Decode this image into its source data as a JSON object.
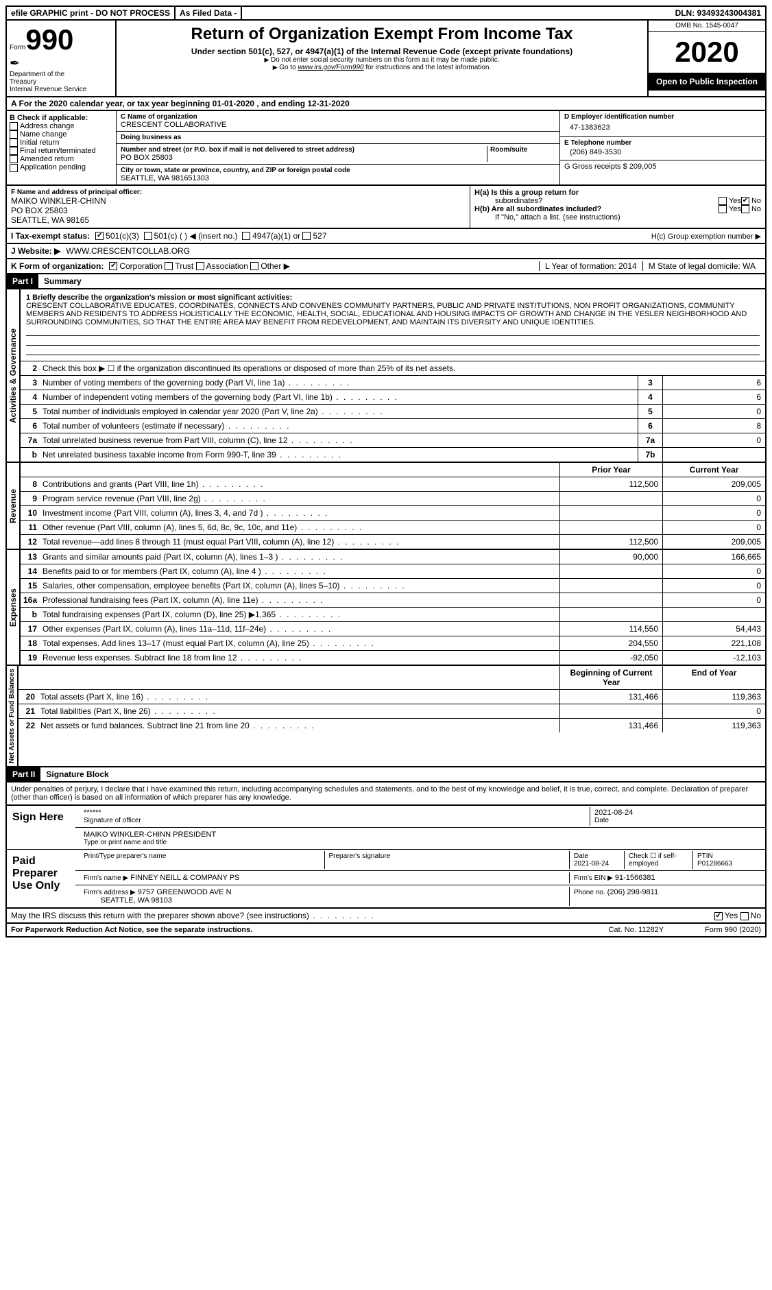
{
  "topbar": {
    "efile": "efile GRAPHIC print - DO NOT PROCESS",
    "asfiled": "As Filed Data -",
    "dln": "DLN: 93493243004381"
  },
  "header": {
    "form_prefix": "Form",
    "form_no": "990",
    "dept1": "Department of the",
    "dept2": "Treasury",
    "dept3": "Internal Revenue Service",
    "title": "Return of Organization Exempt From Income Tax",
    "under": "Under section 501(c), 527, or 4947(a)(1) of the Internal Revenue Code (except private foundations)",
    "ssn": "Do not enter social security numbers on this form as it may be made public.",
    "goto": "Go to ",
    "goto_link": "www.irs.gov/Form990",
    "goto_rest": " for instructions and the latest information.",
    "omb": "OMB No. 1545-0047",
    "year": "2020",
    "open": "Open to Public Inspection"
  },
  "rowA": "A   For the 2020 calendar year, or tax year beginning 01-01-2020   , and ending 12-31-2020",
  "colB": {
    "hdr": "B Check if applicable:",
    "items": [
      "Address change",
      "Name change",
      "Initial return",
      "Final return/terminated",
      "Amended return",
      "Application pending"
    ]
  },
  "colC": {
    "name_lbl": "C Name of organization",
    "name": "CRESCENT COLLABORATIVE",
    "dba_lbl": "Doing business as",
    "addr_lbl": "Number and street (or P.O. box if mail is not delivered to street address)",
    "room_lbl": "Room/suite",
    "addr": "PO BOX 25803",
    "city_lbl": "City or town, state or province, country, and ZIP or foreign postal code",
    "city": "SEATTLE, WA  981651303"
  },
  "colD": {
    "ein_lbl": "D Employer identification number",
    "ein": "47-1383623",
    "tel_lbl": "E Telephone number",
    "tel": "(206) 849-3530",
    "gross_lbl": "G Gross receipts $ 209,005"
  },
  "rowF": {
    "lbl": "F  Name and address of principal officer:",
    "l1": "MAIKO WINKLER-CHINN",
    "l2": "PO BOX 25803",
    "l3": "SEATTLE, WA  98165"
  },
  "rowH": {
    "ha": "H(a)  Is this a group return for",
    "ha2": "subordinates?",
    "hb": "H(b)  Are all subordinates included?",
    "hb2": "If \"No,\" attach a list. (see instructions)",
    "hc": "H(c)  Group exemption number ▶",
    "yes": "Yes",
    "no": "No"
  },
  "rowI": {
    "lbl": "I   Tax-exempt status:",
    "o1": "501(c)(3)",
    "o2": "501(c) (  ) ◀ (insert no.)",
    "o3": "4947(a)(1) or",
    "o4": "527"
  },
  "rowJ": {
    "lbl": "J   Website: ▶",
    "val": "WWW.CRESCENTCOLLAB.ORG"
  },
  "rowK": {
    "lbl": "K Form of organization:",
    "o1": "Corporation",
    "o2": "Trust",
    "o3": "Association",
    "o4": "Other ▶"
  },
  "rowL": {
    "lbl": "L Year of formation: 2014"
  },
  "rowM": {
    "lbl": "M State of legal domicile:",
    "val": "WA"
  },
  "part1": {
    "part": "Part I",
    "title": "Summary"
  },
  "side": {
    "ag": "Activities & Governance",
    "rev": "Revenue",
    "exp": "Expenses",
    "nafb": "Net Assets or Fund Balances"
  },
  "mission": {
    "lbl": "1  Briefly describe the organization's mission or most significant activities:",
    "txt": "CRESCENT COLLABORATIVE EDUCATES, COORDINATES, CONNECTS AND CONVENES COMMUNITY PARTNERS, PUBLIC AND PRIVATE INSTITUTIONS, NON PROFIT ORGANIZATIONS, COMMUNITY MEMBERS AND RESIDENTS TO ADDRESS HOLISTICALLY THE ECONOMIC, HEALTH, SOCIAL, EDUCATIONAL AND HOUSING IMPACTS OF GROWTH AND CHANGE IN THE YESLER NEIGHBORHOOD AND SURROUNDING COMMUNITIES, SO THAT THE ENTIRE AREA MAY BENEFIT FROM REDEVELOPMENT, AND MAINTAIN ITS DIVERSITY AND UNIQUE IDENTITIES."
  },
  "lines_ag": [
    {
      "n": "2",
      "t": "Check this box ▶ ☐ if the organization discontinued its operations or disposed of more than 25% of its net assets."
    },
    {
      "n": "3",
      "t": "Number of voting members of the governing body (Part VI, line 1a)",
      "box": "3",
      "v": "6"
    },
    {
      "n": "4",
      "t": "Number of independent voting members of the governing body (Part VI, line 1b)",
      "box": "4",
      "v": "6"
    },
    {
      "n": "5",
      "t": "Total number of individuals employed in calendar year 2020 (Part V, line 2a)",
      "box": "5",
      "v": "0"
    },
    {
      "n": "6",
      "t": "Total number of volunteers (estimate if necessary)",
      "box": "6",
      "v": "8"
    },
    {
      "n": "7a",
      "t": "Total unrelated business revenue from Part VIII, column (C), line 12",
      "box": "7a",
      "v": "0"
    },
    {
      "n": "b",
      "t": "Net unrelated business taxable income from Form 990-T, line 39",
      "box": "7b",
      "v": ""
    }
  ],
  "colhdrs": {
    "py": "Prior Year",
    "cy": "Current Year"
  },
  "lines_rev": [
    {
      "n": "8",
      "t": "Contributions and grants (Part VIII, line 1h)",
      "py": "112,500",
      "cy": "209,005"
    },
    {
      "n": "9",
      "t": "Program service revenue (Part VIII, line 2g)",
      "py": "",
      "cy": "0"
    },
    {
      "n": "10",
      "t": "Investment income (Part VIII, column (A), lines 3, 4, and 7d )",
      "py": "",
      "cy": "0"
    },
    {
      "n": "11",
      "t": "Other revenue (Part VIII, column (A), lines 5, 6d, 8c, 9c, 10c, and 11e)",
      "py": "",
      "cy": "0"
    },
    {
      "n": "12",
      "t": "Total revenue—add lines 8 through 11 (must equal Part VIII, column (A), line 12)",
      "py": "112,500",
      "cy": "209,005"
    }
  ],
  "lines_exp": [
    {
      "n": "13",
      "t": "Grants and similar amounts paid (Part IX, column (A), lines 1–3 )",
      "py": "90,000",
      "cy": "166,665"
    },
    {
      "n": "14",
      "t": "Benefits paid to or for members (Part IX, column (A), line 4 )",
      "py": "",
      "cy": "0"
    },
    {
      "n": "15",
      "t": "Salaries, other compensation, employee benefits (Part IX, column (A), lines 5–10)",
      "py": "",
      "cy": "0"
    },
    {
      "n": "16a",
      "t": "Professional fundraising fees (Part IX, column (A), line 11e)",
      "py": "",
      "cy": "0"
    },
    {
      "n": "b",
      "t": "Total fundraising expenses (Part IX, column (D), line 25) ▶1,365",
      "py": "",
      "cy": ""
    },
    {
      "n": "17",
      "t": "Other expenses (Part IX, column (A), lines 11a–11d, 11f–24e)",
      "py": "114,550",
      "cy": "54,443"
    },
    {
      "n": "18",
      "t": "Total expenses. Add lines 13–17 (must equal Part IX, column (A), line 25)",
      "py": "204,550",
      "cy": "221,108"
    },
    {
      "n": "19",
      "t": "Revenue less expenses. Subtract line 18 from line 12",
      "py": "-92,050",
      "cy": "-12,103"
    }
  ],
  "colhdrs2": {
    "py": "Beginning of Current Year",
    "cy": "End of Year"
  },
  "lines_na": [
    {
      "n": "20",
      "t": "Total assets (Part X, line 16)",
      "py": "131,466",
      "cy": "119,363"
    },
    {
      "n": "21",
      "t": "Total liabilities (Part X, line 26)",
      "py": "",
      "cy": "0"
    },
    {
      "n": "22",
      "t": "Net assets or fund balances. Subtract line 21 from line 20",
      "py": "131,466",
      "cy": "119,363"
    }
  ],
  "part2": {
    "part": "Part II",
    "title": "Signature Block"
  },
  "penalty": "Under penalties of perjury, I declare that I have examined this return, including accompanying schedules and statements, and to the best of my knowledge and belief, it is true, correct, and complete. Declaration of preparer (other than officer) is based on all information of which preparer has any knowledge.",
  "sign": {
    "here": "Sign Here",
    "stars": "******",
    "sig_lbl": "Signature of officer",
    "date": "2021-08-24",
    "date_lbl": "Date",
    "name": "MAIKO WINKLER-CHINN PRESIDENT",
    "name_lbl": "Type or print name and title"
  },
  "prep": {
    "lbl": "Paid Preparer Use Only",
    "h1": "Print/Type preparer's name",
    "h2": "Preparer's signature",
    "h3": "Date",
    "h4": "Check ☐ if self-employed",
    "h5": "PTIN",
    "date": "2021-08-24",
    "ptin": "P01286663",
    "firm_lbl": "Firm's name    ▶",
    "firm": "FINNEY NEILL & COMPANY PS",
    "ein_lbl": "Firm's EIN ▶",
    "ein": "91-1566381",
    "addr_lbl": "Firm's address ▶",
    "addr1": "9757 GREENWOOD AVE N",
    "addr2": "SEATTLE, WA  98103",
    "phone_lbl": "Phone no.",
    "phone": "(206) 298-9811"
  },
  "discuss": {
    "q": "May the IRS discuss this return with the preparer shown above? (see instructions)",
    "yes": "Yes",
    "no": "No"
  },
  "footer": {
    "pra": "For Paperwork Reduction Act Notice, see the separate instructions.",
    "cat": "Cat. No. 11282Y",
    "form": "Form 990 (2020)"
  }
}
